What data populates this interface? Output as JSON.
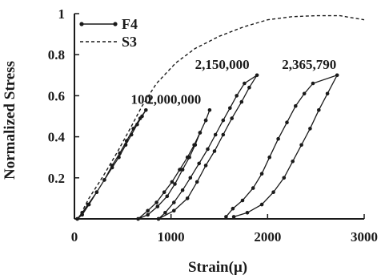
{
  "chart_data": {
    "type": "line",
    "title": "",
    "xlabel": "Strain(μ)",
    "ylabel": "Normalized Stress",
    "xlim": [
      0,
      3000
    ],
    "ylim": [
      0,
      1
    ],
    "x_ticks": [
      "0",
      "1000",
      "2000",
      "3000"
    ],
    "y_ticks": [
      "0.2",
      "0.4",
      "0.6",
      "0.8",
      "1"
    ],
    "grid": false,
    "legend_position": "top-left",
    "colors": {
      "ink": "#1a1a1a"
    },
    "legend": [
      {
        "label": "F4",
        "style": "solid-marker"
      },
      {
        "label": "S3",
        "style": "dashed"
      }
    ],
    "annotations": [
      {
        "text": "100",
        "x": 690,
        "y": 0.53
      },
      {
        "text": "2,000,000",
        "x": 1030,
        "y": 0.53
      },
      {
        "text": "2,150,000",
        "x": 1530,
        "y": 0.7
      },
      {
        "text": "2,365,790",
        "x": 2430,
        "y": 0.7
      }
    ],
    "series": [
      {
        "name": "F4",
        "style": "solid-marker",
        "loops": [
          {
            "cycle": "100",
            "points": [
              [
                30,
                0
              ],
              [
                80,
                0.03
              ],
              [
                140,
                0.07
              ],
              [
                230,
                0.13
              ],
              [
                310,
                0.19
              ],
              [
                390,
                0.25
              ],
              [
                460,
                0.3
              ],
              [
                530,
                0.36
              ],
              [
                590,
                0.41
              ],
              [
                650,
                0.46
              ],
              [
                700,
                0.5
              ],
              [
                740,
                0.53
              ],
              [
                680,
                0.49
              ],
              [
                610,
                0.44
              ],
              [
                540,
                0.38
              ],
              [
                470,
                0.32
              ],
              [
                390,
                0.26
              ],
              [
                310,
                0.19
              ],
              [
                230,
                0.13
              ],
              [
                150,
                0.07
              ],
              [
                80,
                0.02
              ],
              [
                30,
                0
              ]
            ]
          },
          {
            "cycle": "2,000,000",
            "points": [
              [
                660,
                0
              ],
              [
                760,
                0.04
              ],
              [
                850,
                0.08
              ],
              [
                930,
                0.13
              ],
              [
                1010,
                0.18
              ],
              [
                1090,
                0.24
              ],
              [
                1170,
                0.3
              ],
              [
                1240,
                0.36
              ],
              [
                1300,
                0.42
              ],
              [
                1360,
                0.48
              ],
              [
                1400,
                0.53
              ],
              [
                1360,
                0.48
              ],
              [
                1300,
                0.42
              ],
              [
                1250,
                0.36
              ],
              [
                1190,
                0.3
              ],
              [
                1120,
                0.24
              ],
              [
                1040,
                0.17
              ],
              [
                960,
                0.11
              ],
              [
                860,
                0.06
              ],
              [
                760,
                0.02
              ],
              [
                660,
                0
              ]
            ]
          },
          {
            "cycle": "2,150,000",
            "points": [
              [
                870,
                0
              ],
              [
                940,
                0.03
              ],
              [
                1030,
                0.08
              ],
              [
                1120,
                0.14
              ],
              [
                1200,
                0.2
              ],
              [
                1290,
                0.27
              ],
              [
                1380,
                0.34
              ],
              [
                1460,
                0.41
              ],
              [
                1540,
                0.48
              ],
              [
                1610,
                0.54
              ],
              [
                1680,
                0.6
              ],
              [
                1760,
                0.66
              ],
              [
                1890,
                0.7
              ],
              [
                1810,
                0.64
              ],
              [
                1730,
                0.57
              ],
              [
                1630,
                0.49
              ],
              [
                1540,
                0.41
              ],
              [
                1450,
                0.33
              ],
              [
                1360,
                0.26
              ],
              [
                1270,
                0.18
              ],
              [
                1170,
                0.1
              ],
              [
                1030,
                0.04
              ],
              [
                870,
                0
              ]
            ]
          },
          {
            "cycle": "2,365,790",
            "points": [
              [
                1570,
                0.01
              ],
              [
                1640,
                0.05
              ],
              [
                1740,
                0.09
              ],
              [
                1850,
                0.15
              ],
              [
                1940,
                0.22
              ],
              [
                2020,
                0.3
              ],
              [
                2110,
                0.39
              ],
              [
                2200,
                0.47
              ],
              [
                2290,
                0.55
              ],
              [
                2380,
                0.61
              ],
              [
                2470,
                0.66
              ],
              [
                2720,
                0.7
              ],
              [
                2620,
                0.61
              ],
              [
                2530,
                0.53
              ],
              [
                2440,
                0.44
              ],
              [
                2350,
                0.36
              ],
              [
                2260,
                0.28
              ],
              [
                2170,
                0.2
              ],
              [
                2060,
                0.13
              ],
              [
                1940,
                0.07
              ],
              [
                1790,
                0.03
              ],
              [
                1650,
                0.01
              ]
            ]
          }
        ]
      },
      {
        "name": "S3",
        "style": "dashed",
        "x": [
          40,
          150,
          300,
          450,
          600,
          700,
          850,
          1050,
          1250,
          1500,
          1750,
          2000,
          2250,
          2500,
          2750,
          3000
        ],
        "y": [
          0,
          0.1,
          0.21,
          0.33,
          0.46,
          0.55,
          0.66,
          0.76,
          0.83,
          0.89,
          0.935,
          0.97,
          0.985,
          0.99,
          0.99,
          0.97
        ]
      }
    ]
  }
}
